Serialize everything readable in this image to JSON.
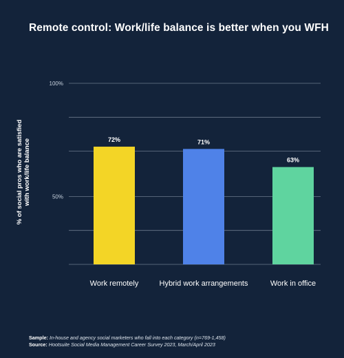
{
  "title": "Remote control: Work/life balance is better when you WFH",
  "chart_data": {
    "type": "bar",
    "categories": [
      "Work remotely",
      "Hybrid work arrangements",
      "Work in office"
    ],
    "values": [
      72,
      71,
      63
    ],
    "value_labels": [
      "72%",
      "71%",
      "63%"
    ],
    "colors": [
      "#f3d526",
      "#4f82e8",
      "#5fd49f"
    ],
    "ylabel_lines": [
      "% of social pros who are satisfied",
      "with work/life balance"
    ],
    "ylim": [
      20,
      100
    ],
    "yticks": [
      20,
      35,
      50,
      70,
      85,
      100
    ],
    "ytick_labels": [
      "",
      "",
      "50%",
      "",
      "",
      "100%"
    ],
    "grid": true
  },
  "footer": {
    "sample_label": "Sample:",
    "sample_text": "In-house and agency social marketers who fall into each category (n=769-1,458)",
    "source_label": "Source:",
    "source_text": "Hootsuite Social Media Management Career Survey 2023, March/April 2023"
  }
}
